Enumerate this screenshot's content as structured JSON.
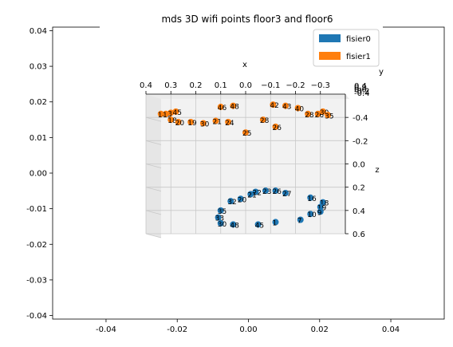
{
  "chart_data": {
    "type": "scatter",
    "title": "mds 3D wifi points floor3 and floor6",
    "outer_axes": {
      "xlim": [
        -0.055,
        0.055
      ],
      "ylim": [
        -0.041,
        0.041
      ],
      "xticks": [
        "-0.04",
        "-0.02",
        "0.00",
        "0.02",
        "0.04"
      ],
      "yticks": [
        "0.04",
        "0.03",
        "0.02",
        "0.01",
        "0.00",
        "-0.01",
        "-0.02",
        "-0.03",
        "-0.04"
      ]
    },
    "axes3d": {
      "x_label": "x",
      "y_label": "y",
      "z_label": "z",
      "x_ticks": [
        "0.4",
        "0.3",
        "0.2",
        "0.1",
        "0.0",
        "−0.1",
        "−0.2",
        "−0.3"
      ],
      "y_ticks": [
        "0.4",
        "0.2",
        "0.0",
        "-0.2",
        "-0.4"
      ],
      "z_ticks": [
        "-0.4",
        "-0.2",
        "0.0",
        "0.2",
        "0.4",
        "0.6"
      ],
      "xlim": [
        0.4,
        -0.4
      ],
      "zlim": [
        -0.6,
        0.6
      ]
    },
    "legend": {
      "position": "top-right",
      "entries": [
        {
          "name": "fisier0",
          "color": "#1f77b4"
        },
        {
          "name": "fisier1",
          "color": "#ff7f0e"
        }
      ]
    },
    "series": [
      {
        "name": "fisier1",
        "color": "#ff7f0e",
        "points": [
          {
            "x": 0.34,
            "z": -0.43,
            "label": "14"
          },
          {
            "x": 0.32,
            "z": -0.43,
            "label": "13"
          },
          {
            "x": 0.3,
            "z": -0.44,
            "label": "3"
          },
          {
            "x": 0.28,
            "z": -0.45,
            "label": "45"
          },
          {
            "x": 0.1,
            "z": -0.49,
            "label": "46"
          },
          {
            "x": 0.05,
            "z": -0.5,
            "label": "48"
          },
          {
            "x": 0.3,
            "z": -0.38,
            "label": "18"
          },
          {
            "x": 0.27,
            "z": -0.36,
            "label": "20"
          },
          {
            "x": 0.22,
            "z": -0.36,
            "label": "19"
          },
          {
            "x": 0.17,
            "z": -0.35,
            "label": "30"
          },
          {
            "x": 0.12,
            "z": -0.37,
            "label": "21"
          },
          {
            "x": 0.07,
            "z": -0.36,
            "label": "24"
          },
          {
            "x": 0.0,
            "z": -0.27,
            "label": "25"
          },
          {
            "x": -0.07,
            "z": -0.38,
            "label": "28"
          },
          {
            "x": -0.12,
            "z": -0.32,
            "label": "26"
          },
          {
            "x": -0.11,
            "z": -0.51,
            "label": "42"
          },
          {
            "x": -0.16,
            "z": -0.5,
            "label": "43"
          },
          {
            "x": -0.21,
            "z": -0.48,
            "label": "40"
          },
          {
            "x": -0.25,
            "z": -0.43,
            "label": "28"
          },
          {
            "x": -0.29,
            "z": -0.43,
            "label": "26"
          },
          {
            "x": -0.31,
            "z": -0.45,
            "label": "30"
          },
          {
            "x": -0.33,
            "z": -0.42,
            "label": "35"
          }
        ]
      },
      {
        "name": "fisier0",
        "color": "#1f77b4",
        "points": [
          {
            "x": -0.31,
            "z": 0.33,
            "label": "18"
          },
          {
            "x": -0.3,
            "z": 0.37,
            "label": "19"
          },
          {
            "x": -0.26,
            "z": 0.29,
            "label": "16"
          },
          {
            "x": -0.16,
            "z": 0.25,
            "label": "27"
          },
          {
            "x": -0.12,
            "z": 0.23,
            "label": "26"
          },
          {
            "x": -0.08,
            "z": 0.23,
            "label": "23"
          },
          {
            "x": -0.04,
            "z": 0.24,
            "label": "22"
          },
          {
            "x": -0.02,
            "z": 0.26,
            "label": "21"
          },
          {
            "x": 0.02,
            "z": 0.3,
            "label": "20"
          },
          {
            "x": 0.06,
            "z": 0.32,
            "label": "32"
          },
          {
            "x": 0.1,
            "z": 0.4,
            "label": "35"
          },
          {
            "x": 0.11,
            "z": 0.46,
            "label": "33"
          },
          {
            "x": 0.1,
            "z": 0.51,
            "label": "30"
          },
          {
            "x": 0.05,
            "z": 0.52,
            "label": "48"
          },
          {
            "x": -0.05,
            "z": 0.52,
            "label": "45"
          },
          {
            "x": -0.12,
            "z": 0.5,
            "label": "1"
          },
          {
            "x": -0.22,
            "z": 0.48,
            "label": "7"
          },
          {
            "x": -0.26,
            "z": 0.43,
            "label": "10"
          },
          {
            "x": -0.3,
            "z": 0.41,
            "label": "9"
          }
        ]
      }
    ]
  }
}
